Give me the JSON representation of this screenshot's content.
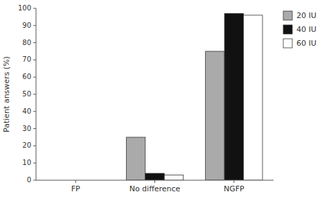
{
  "chart_data": {
    "type": "bar",
    "categories": [
      "FP",
      "No difference",
      "NGFP"
    ],
    "series": [
      {
        "name": "20 IU",
        "color": "#aaaaaa",
        "values": [
          0,
          25,
          75
        ]
      },
      {
        "name": "40 IU",
        "color": "#111111",
        "values": [
          0,
          4,
          97
        ]
      },
      {
        "name": "60 IU",
        "color": "#ffffff",
        "values": [
          0,
          3,
          96
        ]
      }
    ],
    "ylabel": "Patient answers (%)",
    "ylim": [
      0,
      100
    ],
    "yticks": [
      0,
      10,
      20,
      30,
      40,
      50,
      60,
      70,
      80,
      90,
      100
    ],
    "grid": false,
    "legend": "upper right"
  }
}
